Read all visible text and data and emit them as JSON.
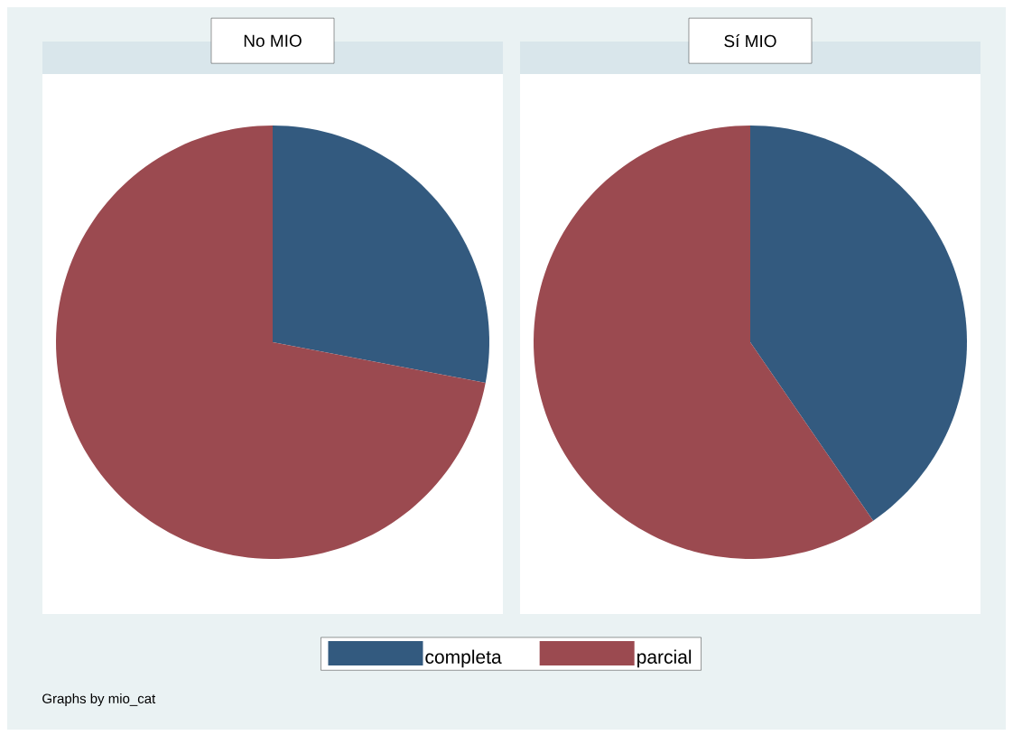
{
  "chart_data": [
    {
      "type": "pie",
      "title": "No MIO",
      "categories": [
        "completa",
        "parcial"
      ],
      "values": [
        28,
        72
      ],
      "colors": [
        "#335a7f",
        "#9b4a50"
      ],
      "legend": "bottom"
    },
    {
      "type": "pie",
      "title": "Sí MIO",
      "categories": [
        null,
        null
      ],
      "values": [
        40.4,
        59.6
      ],
      "colors": [
        "#335a7f",
        "#9b4a50"
      ],
      "annotations": [
        "Graphs by mio_cat"
      ]
    }
  ]
}
